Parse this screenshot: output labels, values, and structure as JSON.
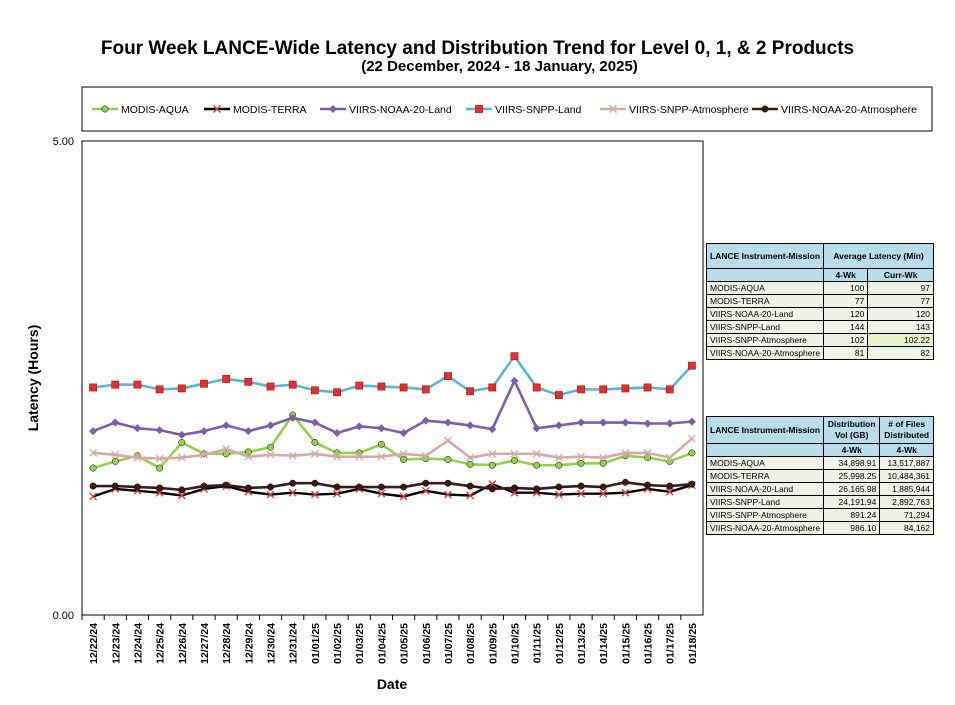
{
  "title": "Four Week LANCE-Wide Latency and Distribution Trend for Level 0, 1, & 2 Products",
  "subtitle": "(22  December,  2024  -  18  January, 2025)",
  "chart_data": {
    "type": "line",
    "xlabel": "Date",
    "ylabel": "Latency (Hours)",
    "ylim": [
      0,
      5
    ],
    "y_ticks": [
      "0.00",
      "5.00"
    ],
    "legend_position": "top",
    "categories": [
      "12/22/24",
      "12/23/24",
      "12/24/24",
      "12/25/24",
      "12/26/24",
      "12/27/24",
      "12/28/24",
      "12/29/24",
      "12/30/24",
      "12/31/24",
      "01/01/25",
      "01/02/25",
      "01/03/25",
      "01/04/25",
      "01/05/25",
      "01/06/25",
      "01/07/25",
      "01/08/25",
      "01/09/25",
      "01/10/25",
      "01/11/25",
      "01/12/25",
      "01/13/25",
      "01/14/25",
      "01/15/25",
      "01/16/25",
      "01/17/25",
      "01/18/25"
    ],
    "series": [
      {
        "name": "MODIS-AQUA",
        "color": "#92d050",
        "marker": "circle",
        "values": [
          1.55,
          1.62,
          1.68,
          1.55,
          1.82,
          1.7,
          1.7,
          1.72,
          1.77,
          2.11,
          1.82,
          1.71,
          1.71,
          1.8,
          1.64,
          1.65,
          1.64,
          1.59,
          1.58,
          1.63,
          1.58,
          1.58,
          1.6,
          1.6,
          1.68,
          1.66,
          1.62,
          1.71
        ]
      },
      {
        "name": "MODIS-TERRA",
        "color": "#000000",
        "marker": "x",
        "values": [
          1.25,
          1.33,
          1.31,
          1.29,
          1.26,
          1.33,
          1.36,
          1.3,
          1.27,
          1.29,
          1.27,
          1.28,
          1.33,
          1.28,
          1.25,
          1.31,
          1.27,
          1.26,
          1.38,
          1.29,
          1.29,
          1.27,
          1.28,
          1.28,
          1.29,
          1.33,
          1.3,
          1.37
        ]
      },
      {
        "name": "VIIRS-NOAA-20-Land",
        "color": "#7b5ea7",
        "marker": "diamond",
        "values": [
          1.94,
          2.03,
          1.97,
          1.95,
          1.9,
          1.94,
          2.0,
          1.94,
          2.0,
          2.08,
          2.03,
          1.92,
          1.99,
          1.97,
          1.92,
          2.05,
          2.03,
          2.0,
          1.96,
          2.47,
          1.97,
          2.0,
          2.03,
          2.03,
          2.03,
          2.02,
          2.02,
          2.04
        ]
      },
      {
        "name": "VIIRS-SNPP-Land",
        "color": "#5ab3d0",
        "marker": "square",
        "values": [
          2.4,
          2.43,
          2.43,
          2.38,
          2.39,
          2.44,
          2.49,
          2.46,
          2.41,
          2.43,
          2.37,
          2.35,
          2.42,
          2.41,
          2.4,
          2.38,
          2.52,
          2.36,
          2.4,
          2.73,
          2.4,
          2.32,
          2.38,
          2.38,
          2.39,
          2.4,
          2.38,
          2.63
        ]
      },
      {
        "name": "VIIRS-SNPP-Atmosphere",
        "color": "#d4aaa8",
        "marker": "x",
        "values": [
          1.71,
          1.69,
          1.66,
          1.65,
          1.66,
          1.69,
          1.75,
          1.67,
          1.69,
          1.68,
          1.7,
          1.67,
          1.67,
          1.67,
          1.7,
          1.68,
          1.84,
          1.66,
          1.7,
          1.7,
          1.7,
          1.66,
          1.67,
          1.66,
          1.71,
          1.71,
          1.66,
          1.86
        ]
      },
      {
        "name": "VIIRS-NOAA-20-Atmosphere",
        "color": "#3a1a1a",
        "marker": "circle",
        "values": [
          1.36,
          1.36,
          1.35,
          1.34,
          1.32,
          1.36,
          1.37,
          1.34,
          1.35,
          1.39,
          1.39,
          1.35,
          1.35,
          1.35,
          1.35,
          1.39,
          1.39,
          1.36,
          1.33,
          1.34,
          1.33,
          1.35,
          1.36,
          1.35,
          1.4,
          1.37,
          1.36,
          1.38
        ]
      }
    ]
  },
  "latency_table": {
    "header": {
      "col1": "LANCE Instrument-Mission",
      "group": "Average Latency (Min)",
      "sub1": "4-Wk",
      "sub2": "Curr-Wk"
    },
    "rows": [
      {
        "name": "MODIS-AQUA",
        "wk4": "100",
        "curr": "97"
      },
      {
        "name": "MODIS-TERRA",
        "wk4": "77",
        "curr": "77"
      },
      {
        "name": "VIIRS-NOAA-20-Land",
        "wk4": "120",
        "curr": "120"
      },
      {
        "name": "VIIRS-SNPP-Land",
        "wk4": "144",
        "curr": "143"
      },
      {
        "name": "VIIRS-SNPP-Atmosphere",
        "wk4": "102",
        "curr": "102.22"
      },
      {
        "name": "VIIRS-NOAA-20-Atmosphere",
        "wk4": "81",
        "curr": "82"
      }
    ]
  },
  "distribution_table": {
    "header": {
      "col1": "LANCE Instrument-Mission",
      "col2": "Distribution Vol (GB)",
      "col3": "# of Files Distributed",
      "sub2": "4-Wk",
      "sub3": "4-Wk"
    },
    "rows": [
      {
        "name": "MODIS-AQUA",
        "vol": "34,898.91",
        "files": "13,517,887"
      },
      {
        "name": "MODIS-TERRA",
        "vol": "25,998.25",
        "files": "10,484,361"
      },
      {
        "name": "VIIRS-NOAA-20-Land",
        "vol": "26,165.98",
        "files": "1,885,944"
      },
      {
        "name": "VIIRS-SNPP-Land",
        "vol": "24,191.94",
        "files": "2,892,763"
      },
      {
        "name": "VIIRS-SNPP-Atmosphere",
        "vol": "891.24",
        "files": "71,294"
      },
      {
        "name": "VIIRS-NOAA-20-Atmosphere",
        "vol": "986.10",
        "files": "84,162"
      }
    ]
  }
}
